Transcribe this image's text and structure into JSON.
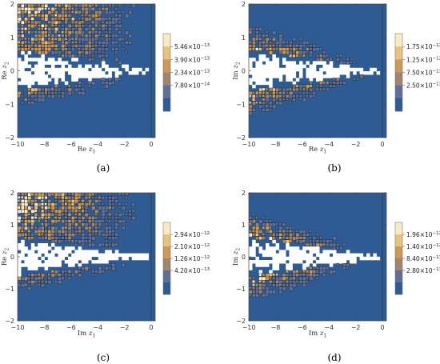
{
  "chart_data": [
    {
      "type": "heatmap",
      "caption": "(a)",
      "xlabel": {
        "pre": "Re ",
        "var": "z",
        "sub": "1"
      },
      "ylabel": {
        "pre": "Re ",
        "var": "z",
        "sub": "2"
      },
      "xlim": [
        -10,
        0.3
      ],
      "ylim": [
        -2,
        2
      ],
      "x_ticks": [
        "−10",
        "−8",
        "−6",
        "−4",
        "−2",
        "0"
      ],
      "x_tick_values": [
        -10,
        -8,
        -6,
        -4,
        -2,
        0
      ],
      "y_ticks": [
        "−2",
        "−1",
        "0",
        "1",
        "2"
      ],
      "y_tick_values": [
        -2,
        -1,
        0,
        1,
        2
      ],
      "colorbar_labels": [
        "5.46",
        "3.90",
        "2.34",
        "7.80"
      ],
      "colorbar_exponents": [
        "−13",
        "−13",
        "−13",
        "−14"
      ],
      "pattern": "upper",
      "noise_seed": 11
    },
    {
      "type": "heatmap",
      "caption": "(b)",
      "xlabel": {
        "pre": "Re ",
        "var": "z",
        "sub": "1"
      },
      "ylabel": {
        "pre": "Im ",
        "var": "z",
        "sub": "2"
      },
      "xlim": [
        -10,
        0.3
      ],
      "ylim": [
        -2,
        2
      ],
      "x_ticks": [
        "−10",
        "−8",
        "−6",
        "−4",
        "−2",
        "0"
      ],
      "x_tick_values": [
        -10,
        -8,
        -6,
        -4,
        -2,
        0
      ],
      "y_ticks": [
        "−2",
        "−1",
        "0",
        "1",
        "2"
      ],
      "y_tick_values": [
        -2,
        -1,
        0,
        1,
        2
      ],
      "colorbar_labels": [
        "1.75",
        "1.25",
        "7.50",
        "2.50"
      ],
      "colorbar_exponents": [
        "−12",
        "−12",
        "−13",
        "−13"
      ],
      "pattern": "band",
      "noise_seed": 23
    },
    {
      "type": "heatmap",
      "caption": "(c)",
      "xlabel": {
        "pre": "Im ",
        "var": "z",
        "sub": "1"
      },
      "ylabel": {
        "pre": "Re ",
        "var": "z",
        "sub": "2"
      },
      "xlim": [
        -10,
        0.3
      ],
      "ylim": [
        -2,
        2
      ],
      "x_ticks": [
        "−10",
        "−8",
        "−6",
        "−4",
        "−2",
        "0"
      ],
      "x_tick_values": [
        -10,
        -8,
        -6,
        -4,
        -2,
        0
      ],
      "y_ticks": [
        "−2",
        "−1",
        "0",
        "1",
        "2"
      ],
      "y_tick_values": [
        -2,
        -1,
        0,
        1,
        2
      ],
      "colorbar_labels": [
        "2.94",
        "2.10",
        "1.26",
        "4.20"
      ],
      "colorbar_exponents": [
        "−12",
        "−12",
        "−12",
        "−13"
      ],
      "pattern": "upper",
      "noise_seed": 37
    },
    {
      "type": "heatmap",
      "caption": "(d)",
      "xlabel": {
        "pre": "Im ",
        "var": "z",
        "sub": "1"
      },
      "ylabel": {
        "pre": "Im ",
        "var": "z",
        "sub": "2"
      },
      "xlim": [
        -10,
        0.3
      ],
      "ylim": [
        -2,
        2
      ],
      "x_ticks": [
        "−10",
        "−8",
        "−6",
        "−4",
        "−2",
        "0"
      ],
      "x_tick_values": [
        -10,
        -8,
        -6,
        -4,
        -2,
        0
      ],
      "y_ticks": [
        "−2",
        "−1",
        "0",
        "1",
        "2"
      ],
      "y_tick_values": [
        -2,
        -1,
        0,
        1,
        2
      ],
      "colorbar_labels": [
        "1.96",
        "1.40",
        "8.40",
        "2.80"
      ],
      "colorbar_exponents": [
        "−12",
        "−12",
        "−13",
        "−13"
      ],
      "pattern": "band",
      "noise_seed": 51
    }
  ],
  "colorbar_mantissa_prefix": "×10",
  "colors": {
    "background_band": "#2e5b93",
    "level_1": "#5e6f98",
    "level_2": "#a0856d",
    "level_3": "#cc9a55",
    "level_4": "#e8c27e",
    "level_5": "#f8ebc6",
    "contour_line": "#1a1a1a",
    "void": "#ffffff"
  }
}
